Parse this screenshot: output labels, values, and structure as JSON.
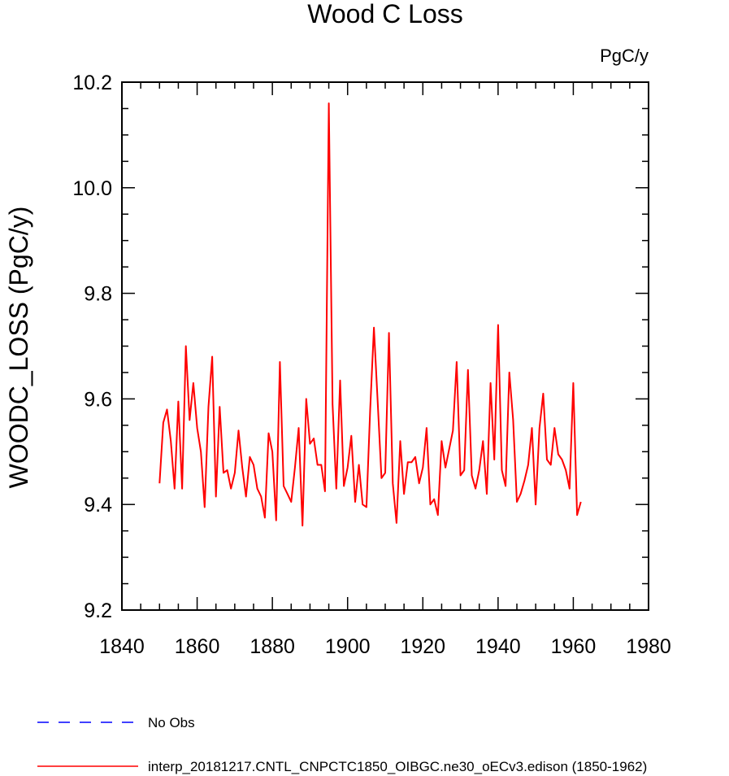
{
  "chart_data": {
    "type": "line",
    "title": "Wood C Loss",
    "units_label": "PgC/y",
    "ylabel": "WOODC_LOSS  (PgC/y)",
    "xlabel": "",
    "xlim": [
      1840,
      1980
    ],
    "ylim": [
      9.2,
      10.2
    ],
    "x_ticks": [
      1840,
      1860,
      1880,
      1900,
      1920,
      1940,
      1960,
      1980
    ],
    "x_tick_labels": [
      "1840",
      "1860",
      "1880",
      "1900",
      "1920",
      "1940",
      "1960",
      "1980"
    ],
    "y_ticks": [
      9.2,
      9.4,
      9.6,
      9.8,
      10.0,
      10.2
    ],
    "y_tick_labels": [
      "9.2",
      "9.4",
      "9.6",
      "9.8",
      "10.0",
      "10.2"
    ],
    "legend": [
      {
        "label": "No Obs",
        "color": "#0000ff",
        "style": "dashed"
      },
      {
        "label": "interp_20181217.CNTL_CNPCTC1850_OIBGC.ne30_oECv3.edison (1850-1962)",
        "color": "#ff0000",
        "style": "solid"
      }
    ],
    "series": [
      {
        "name": "interp_20181217.CNTL_CNPCTC1850_OIBGC.ne30_oECv3.edison (1850-1962)",
        "color": "#ff0000",
        "x": [
          1850,
          1851,
          1852,
          1853,
          1854,
          1855,
          1856,
          1857,
          1858,
          1859,
          1860,
          1861,
          1862,
          1863,
          1864,
          1865,
          1866,
          1867,
          1868,
          1869,
          1870,
          1871,
          1872,
          1873,
          1874,
          1875,
          1876,
          1877,
          1878,
          1879,
          1880,
          1881,
          1882,
          1883,
          1884,
          1885,
          1886,
          1887,
          1888,
          1889,
          1890,
          1891,
          1892,
          1893,
          1894,
          1895,
          1896,
          1897,
          1898,
          1899,
          1900,
          1901,
          1902,
          1903,
          1904,
          1905,
          1906,
          1907,
          1908,
          1909,
          1910,
          1911,
          1912,
          1913,
          1914,
          1915,
          1916,
          1917,
          1918,
          1919,
          1920,
          1921,
          1922,
          1923,
          1924,
          1925,
          1926,
          1927,
          1928,
          1929,
          1930,
          1931,
          1932,
          1933,
          1934,
          1935,
          1936,
          1937,
          1938,
          1939,
          1940,
          1941,
          1942,
          1943,
          1944,
          1945,
          1946,
          1947,
          1948,
          1949,
          1950,
          1951,
          1952,
          1953,
          1954,
          1955,
          1956,
          1957,
          1958,
          1959,
          1960,
          1961,
          1962
        ],
        "y": [
          9.44,
          9.555,
          9.58,
          9.52,
          9.43,
          9.595,
          9.43,
          9.7,
          9.56,
          9.63,
          9.545,
          9.5,
          9.395,
          9.585,
          9.68,
          9.415,
          9.585,
          9.46,
          9.465,
          9.43,
          9.46,
          9.54,
          9.47,
          9.415,
          9.49,
          9.475,
          9.43,
          9.415,
          9.375,
          9.535,
          9.5,
          9.37,
          9.67,
          9.435,
          9.42,
          9.405,
          9.47,
          9.545,
          9.36,
          9.6,
          9.515,
          9.525,
          9.475,
          9.475,
          9.425,
          10.16,
          9.59,
          9.43,
          9.635,
          9.435,
          9.47,
          9.53,
          9.405,
          9.475,
          9.4,
          9.395,
          9.58,
          9.735,
          9.595,
          9.45,
          9.46,
          9.725,
          9.44,
          9.365,
          9.52,
          9.42,
          9.48,
          9.48,
          9.49,
          9.44,
          9.47,
          9.545,
          9.4,
          9.41,
          9.38,
          9.52,
          9.47,
          9.505,
          9.54,
          9.67,
          9.455,
          9.465,
          9.655,
          9.455,
          9.43,
          9.465,
          9.52,
          9.42,
          9.63,
          9.485,
          9.74,
          9.465,
          9.435,
          9.65,
          9.56,
          9.405,
          9.42,
          9.445,
          9.475,
          9.545,
          9.4,
          9.545,
          9.61,
          9.485,
          9.475,
          9.545,
          9.495,
          9.485,
          9.465,
          9.43,
          9.63,
          9.38,
          9.405
        ]
      }
    ]
  }
}
